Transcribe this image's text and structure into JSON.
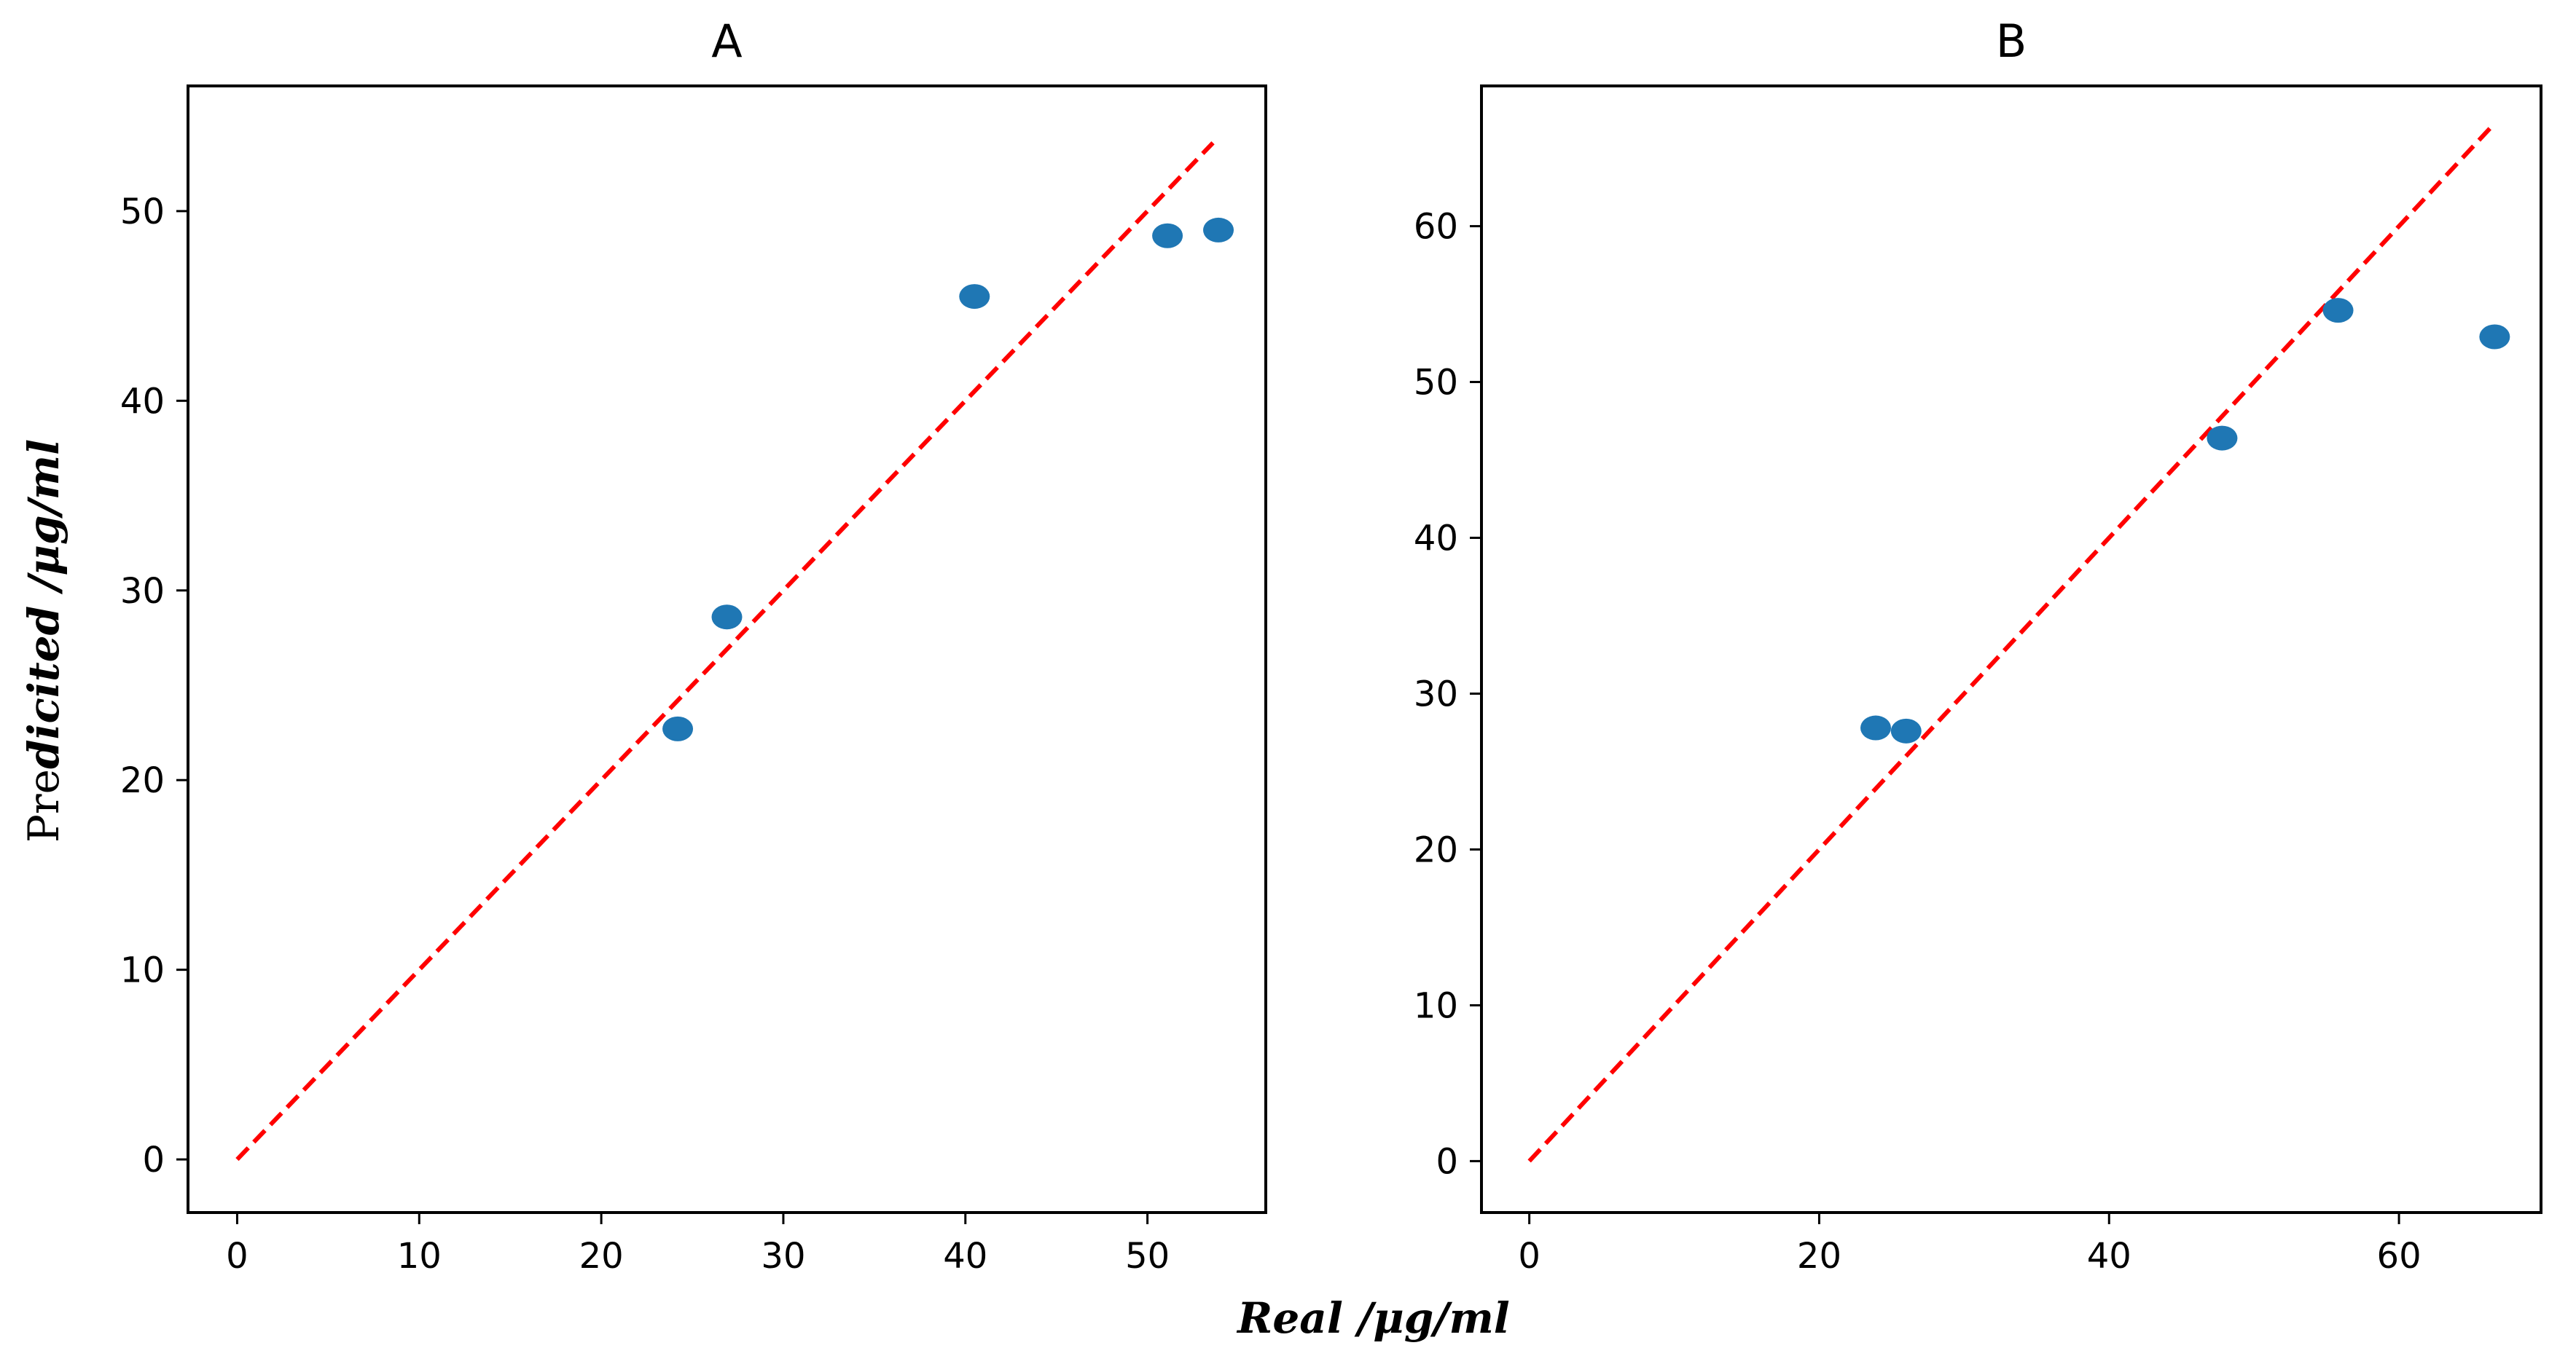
{
  "shared": {
    "xlabel": "Real /μg/ml",
    "ylabel_prefix": "Pre",
    "ylabel_rest": "dicited /μg/ml"
  },
  "colors": {
    "points": "#1f77b4",
    "identity_line": "#ff0000",
    "axes": "#000000"
  },
  "chart_data": [
    {
      "type": "scatter",
      "title": "A",
      "xlabel": "Real /μg/ml",
      "ylabel": "Predicited /μg/ml",
      "xlim": [
        -2.7,
        56.5
      ],
      "ylim": [
        -2.8,
        56.6
      ],
      "xticks": [
        0,
        10,
        20,
        30,
        40,
        50
      ],
      "yticks": [
        0,
        10,
        20,
        30,
        40,
        50
      ],
      "identity_line": [
        0,
        53.6
      ],
      "points": [
        {
          "x": 24.2,
          "y": 22.7
        },
        {
          "x": 26.9,
          "y": 28.6
        },
        {
          "x": 40.5,
          "y": 45.5
        },
        {
          "x": 51.1,
          "y": 48.7
        },
        {
          "x": 53.9,
          "y": 49.0
        }
      ]
    },
    {
      "type": "scatter",
      "title": "B",
      "xlabel": "Real /μg/ml",
      "ylabel": "Predicited /μg/ml",
      "xlim": [
        -3.3,
        69.8
      ],
      "ylim": [
        -3.3,
        69.0
      ],
      "xticks": [
        0,
        20,
        40,
        60
      ],
      "yticks": [
        0,
        10,
        20,
        30,
        40,
        50,
        60
      ],
      "identity_line": [
        0,
        66.3
      ],
      "points": [
        {
          "x": 23.9,
          "y": 27.8
        },
        {
          "x": 26.0,
          "y": 27.6
        },
        {
          "x": 47.8,
          "y": 46.4
        },
        {
          "x": 55.8,
          "y": 54.6
        },
        {
          "x": 66.6,
          "y": 52.9
        }
      ]
    }
  ]
}
